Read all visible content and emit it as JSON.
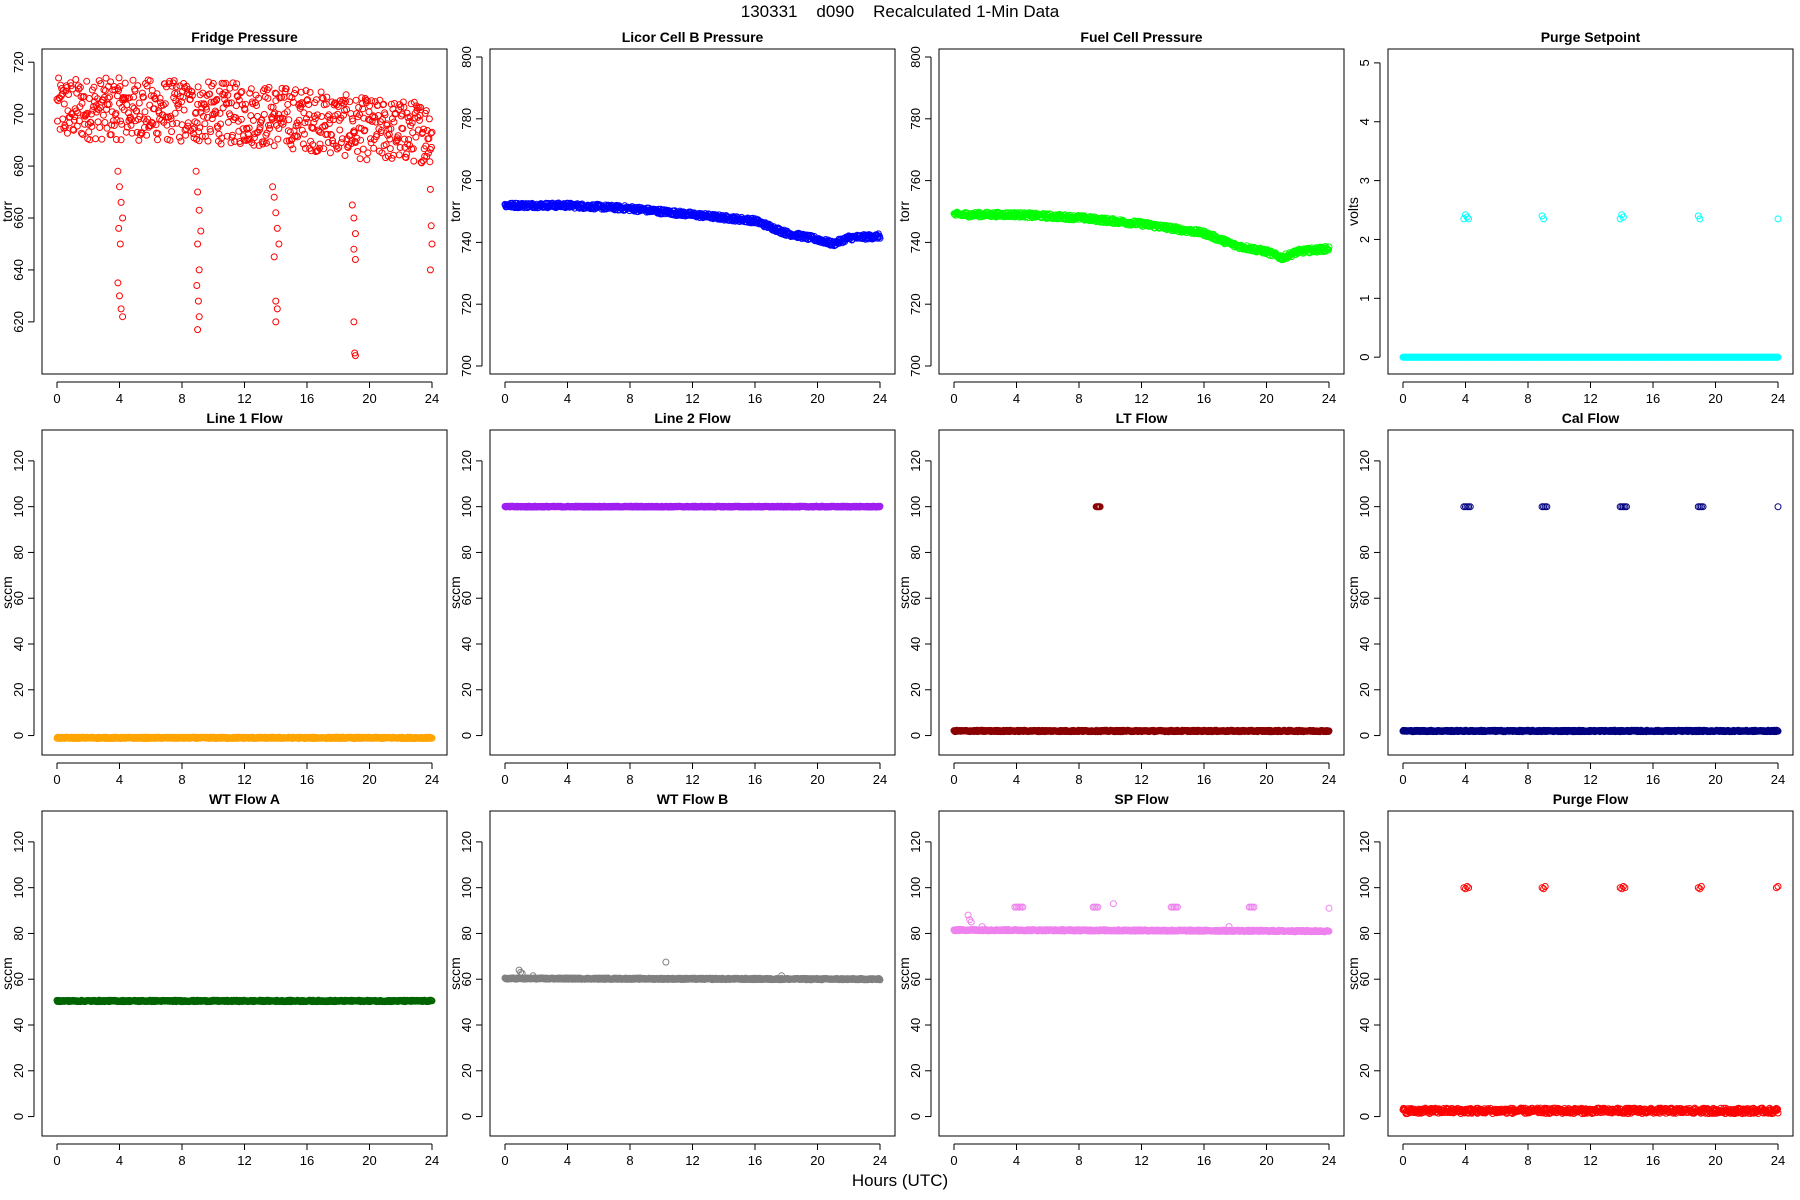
{
  "figure": {
    "title": "130331    d090    Recalculated 1-Min Data",
    "xlabel": "Hours (UTC)"
  },
  "chart_data": [
    {
      "type": "scatter",
      "title": "Fridge Pressure",
      "ylabel": "torr",
      "color": "#ff0000",
      "xlim": [
        0,
        24
      ],
      "ylim": [
        603,
        722
      ],
      "xticks": [
        0,
        4,
        8,
        12,
        16,
        20,
        24
      ],
      "yticks": [
        620,
        640,
        660,
        680,
        700,
        720
      ],
      "baseline": [
        [
          0,
          702
        ],
        [
          4,
          702
        ],
        [
          8,
          701
        ],
        [
          12,
          700
        ],
        [
          16,
          698
        ],
        [
          20,
          694
        ],
        [
          24,
          693
        ]
      ],
      "spread": 12,
      "outliers": [
        [
          3.9,
          678
        ],
        [
          4.0,
          672
        ],
        [
          4.1,
          666
        ],
        [
          4.2,
          660
        ],
        [
          3.95,
          656
        ],
        [
          4.05,
          650
        ],
        [
          3.9,
          635
        ],
        [
          4.0,
          630
        ],
        [
          4.1,
          625
        ],
        [
          4.2,
          622
        ],
        [
          8.9,
          678
        ],
        [
          9.0,
          670
        ],
        [
          9.1,
          663
        ],
        [
          9.2,
          655
        ],
        [
          9.0,
          650
        ],
        [
          9.1,
          640
        ],
        [
          8.95,
          634
        ],
        [
          9.05,
          628
        ],
        [
          9.1,
          622
        ],
        [
          9.0,
          617
        ],
        [
          13.8,
          672
        ],
        [
          13.9,
          668
        ],
        [
          14.0,
          662
        ],
        [
          14.1,
          656
        ],
        [
          14.2,
          650
        ],
        [
          13.9,
          645
        ],
        [
          14.0,
          628
        ],
        [
          14.1,
          625
        ],
        [
          14.0,
          620
        ],
        [
          18.9,
          665
        ],
        [
          19.0,
          660
        ],
        [
          19.1,
          654
        ],
        [
          19.0,
          648
        ],
        [
          19.1,
          644
        ],
        [
          19.0,
          620
        ],
        [
          19.05,
          608
        ],
        [
          19.1,
          607
        ],
        [
          23.9,
          671
        ],
        [
          23.95,
          657
        ],
        [
          24.0,
          650
        ],
        [
          23.9,
          640
        ]
      ]
    },
    {
      "type": "scatter",
      "title": "Licor Cell B Pressure",
      "ylabel": "torr",
      "color": "#0000ff",
      "xlim": [
        0,
        24
      ],
      "ylim": [
        700,
        800
      ],
      "xticks": [
        0,
        4,
        8,
        12,
        16,
        20,
        24
      ],
      "yticks": [
        700,
        720,
        740,
        760,
        780,
        800
      ],
      "baseline": [
        [
          0,
          752
        ],
        [
          4,
          752
        ],
        [
          8,
          751
        ],
        [
          12,
          749
        ],
        [
          16,
          747
        ],
        [
          18,
          743
        ],
        [
          20,
          741
        ],
        [
          21,
          739.5
        ],
        [
          22,
          741.5
        ],
        [
          24,
          742
        ]
      ],
      "spread": 0.8,
      "outliers": [
        [
          5,
          751
        ],
        [
          6,
          752
        ]
      ]
    },
    {
      "type": "scatter",
      "title": "Fuel Cell Pressure",
      "ylabel": "torr",
      "color": "#00ff00",
      "xlim": [
        0,
        24
      ],
      "ylim": [
        700,
        800
      ],
      "xticks": [
        0,
        4,
        8,
        12,
        16,
        20,
        24
      ],
      "yticks": [
        700,
        720,
        740,
        760,
        780,
        800
      ],
      "baseline": [
        [
          0,
          749
        ],
        [
          4,
          749
        ],
        [
          8,
          748
        ],
        [
          12,
          746
        ],
        [
          16,
          743
        ],
        [
          18,
          739
        ],
        [
          20,
          737
        ],
        [
          21,
          735
        ],
        [
          22,
          737
        ],
        [
          24,
          738
        ]
      ],
      "spread": 0.8,
      "outliers": [
        [
          5,
          748
        ]
      ]
    },
    {
      "type": "scatter",
      "title": "Purge Setpoint",
      "ylabel": "volts",
      "color": "#00ffff",
      "xlim": [
        0,
        24
      ],
      "ylim": [
        -0.15,
        5.1
      ],
      "xticks": [
        0,
        4,
        8,
        12,
        16,
        20,
        24
      ],
      "yticks": [
        0,
        1,
        2,
        3,
        4,
        5
      ],
      "baseline": [
        [
          0,
          0
        ],
        [
          24,
          0
        ]
      ],
      "spread": 0,
      "outliers": [
        [
          3.9,
          2.35
        ],
        [
          4.0,
          2.42
        ],
        [
          4.1,
          2.38
        ],
        [
          4.2,
          2.35
        ],
        [
          8.9,
          2.4
        ],
        [
          9.0,
          2.35
        ],
        [
          13.9,
          2.35
        ],
        [
          14.0,
          2.42
        ],
        [
          14.1,
          2.38
        ],
        [
          18.9,
          2.4
        ],
        [
          19.0,
          2.35
        ],
        [
          24.0,
          2.35
        ]
      ]
    },
    {
      "type": "scatter",
      "title": "Line 1 Flow",
      "ylabel": "sccm",
      "color": "#ffa500",
      "xlim": [
        0,
        24
      ],
      "ylim": [
        -5,
        130
      ],
      "xticks": [
        0,
        4,
        8,
        12,
        16,
        20,
        24
      ],
      "yticks": [
        0,
        20,
        40,
        60,
        80,
        100,
        120
      ],
      "baseline": [
        [
          0,
          -1
        ],
        [
          24,
          -1
        ]
      ],
      "spread": 0.3,
      "outliers": []
    },
    {
      "type": "scatter",
      "title": "Line 2 Flow",
      "ylabel": "sccm",
      "color": "#a020f0",
      "xlim": [
        0,
        24
      ],
      "ylim": [
        -5,
        130
      ],
      "xticks": [
        0,
        4,
        8,
        12,
        16,
        20,
        24
      ],
      "yticks": [
        0,
        20,
        40,
        60,
        80,
        100,
        120
      ],
      "baseline": [
        [
          0,
          100
        ],
        [
          24,
          100
        ]
      ],
      "spread": 0.2,
      "outliers": []
    },
    {
      "type": "scatter",
      "title": "LT Flow",
      "ylabel": "sccm",
      "color": "#8b0000",
      "xlim": [
        0,
        24
      ],
      "ylim": [
        -5,
        130
      ],
      "xticks": [
        0,
        4,
        8,
        12,
        16,
        20,
        24
      ],
      "yticks": [
        0,
        20,
        40,
        60,
        80,
        100,
        120
      ],
      "baseline": [
        [
          0,
          2
        ],
        [
          24,
          2
        ]
      ],
      "spread": 0.3,
      "outliers": [
        [
          9.1,
          100
        ],
        [
          9.15,
          100
        ],
        [
          9.2,
          100
        ],
        [
          9.25,
          100
        ],
        [
          9.3,
          100
        ],
        [
          9.35,
          100
        ]
      ]
    },
    {
      "type": "scatter",
      "title": "Cal Flow",
      "ylabel": "sccm",
      "color": "#000080",
      "xlim": [
        0,
        24
      ],
      "ylim": [
        -5,
        130
      ],
      "xticks": [
        0,
        4,
        8,
        12,
        16,
        20,
        24
      ],
      "yticks": [
        0,
        20,
        40,
        60,
        80,
        100,
        120
      ],
      "baseline": [
        [
          0,
          2
        ],
        [
          24,
          2
        ]
      ],
      "spread": 0.3,
      "outliers": [
        [
          3.9,
          100
        ],
        [
          4.0,
          100
        ],
        [
          4.1,
          100
        ],
        [
          4.2,
          100
        ],
        [
          4.3,
          100
        ],
        [
          8.9,
          100
        ],
        [
          9.0,
          100
        ],
        [
          9.1,
          100
        ],
        [
          9.2,
          100
        ],
        [
          13.9,
          100
        ],
        [
          14.0,
          100
        ],
        [
          14.1,
          100
        ],
        [
          14.2,
          100
        ],
        [
          14.3,
          100
        ],
        [
          18.9,
          100
        ],
        [
          19.0,
          100
        ],
        [
          19.1,
          100
        ],
        [
          19.2,
          100
        ],
        [
          24.0,
          100
        ]
      ]
    },
    {
      "type": "scatter",
      "title": "WT Flow A",
      "ylabel": "sccm",
      "color": "#006400",
      "xlim": [
        0,
        24
      ],
      "ylim": [
        -5,
        130
      ],
      "xticks": [
        0,
        4,
        8,
        12,
        16,
        20,
        24
      ],
      "yticks": [
        0,
        20,
        40,
        60,
        80,
        100,
        120
      ],
      "baseline": [
        [
          0,
          50.5
        ],
        [
          24,
          50.5
        ]
      ],
      "spread": 0.3,
      "outliers": []
    },
    {
      "type": "scatter",
      "title": "WT Flow B",
      "ylabel": "sccm",
      "color": "#808080",
      "xlim": [
        0,
        24
      ],
      "ylim": [
        -5,
        130
      ],
      "xticks": [
        0,
        4,
        8,
        12,
        16,
        20,
        24
      ],
      "yticks": [
        0,
        20,
        40,
        60,
        80,
        100,
        120
      ],
      "baseline": [
        [
          0,
          60.3
        ],
        [
          24,
          60
        ]
      ],
      "spread": 0.3,
      "outliers": [
        [
          0.9,
          64
        ],
        [
          1.0,
          63
        ],
        [
          1.1,
          62.5
        ],
        [
          1.8,
          61.5
        ],
        [
          10.3,
          67.5
        ],
        [
          17.7,
          61.5
        ]
      ]
    },
    {
      "type": "scatter",
      "title": "SP Flow",
      "ylabel": "sccm",
      "color": "#ee82ee",
      "xlim": [
        0,
        24
      ],
      "ylim": [
        -5,
        130
      ],
      "xticks": [
        0,
        4,
        8,
        12,
        16,
        20,
        24
      ],
      "yticks": [
        0,
        20,
        40,
        60,
        80,
        100,
        120
      ],
      "baseline": [
        [
          0,
          81.5
        ],
        [
          12,
          81.3
        ],
        [
          24,
          81
        ]
      ],
      "spread": 0.3,
      "outliers": [
        [
          0.9,
          88
        ],
        [
          1.0,
          86
        ],
        [
          1.1,
          85
        ],
        [
          1.8,
          83
        ],
        [
          3.9,
          91.5
        ],
        [
          4.0,
          91.5
        ],
        [
          4.1,
          91.5
        ],
        [
          4.2,
          91.5
        ],
        [
          4.3,
          91.5
        ],
        [
          4.4,
          91.5
        ],
        [
          8.9,
          91.5
        ],
        [
          9.0,
          91.5
        ],
        [
          9.1,
          91.5
        ],
        [
          9.2,
          91.5
        ],
        [
          10.2,
          93
        ],
        [
          13.9,
          91.5
        ],
        [
          14.0,
          91.5
        ],
        [
          14.1,
          91.5
        ],
        [
          14.2,
          91.5
        ],
        [
          14.3,
          91.5
        ],
        [
          17.6,
          83
        ],
        [
          18.9,
          91.5
        ],
        [
          19.0,
          91.5
        ],
        [
          19.1,
          91.5
        ],
        [
          19.2,
          91.5
        ],
        [
          24.0,
          91
        ]
      ]
    },
    {
      "type": "scatter",
      "title": "Purge Flow",
      "ylabel": "sccm",
      "color": "#ff0000",
      "xlim": [
        0,
        24
      ],
      "ylim": [
        -5,
        130
      ],
      "xticks": [
        0,
        4,
        8,
        12,
        16,
        20,
        24
      ],
      "yticks": [
        0,
        20,
        40,
        60,
        80,
        100,
        120
      ],
      "baseline": [
        [
          0,
          2.5
        ],
        [
          24,
          2.5
        ]
      ],
      "spread": 1.2,
      "outliers": [
        [
          3.9,
          100
        ],
        [
          4.0,
          99.5
        ],
        [
          4.1,
          100.5
        ],
        [
          4.2,
          100
        ],
        [
          8.9,
          100
        ],
        [
          9.0,
          99.5
        ],
        [
          9.1,
          100.5
        ],
        [
          13.9,
          100
        ],
        [
          14.0,
          99.5
        ],
        [
          14.1,
          100.5
        ],
        [
          14.2,
          100
        ],
        [
          18.9,
          100
        ],
        [
          19.0,
          99.5
        ],
        [
          19.1,
          100.5
        ],
        [
          23.9,
          100
        ],
        [
          24.0,
          100.5
        ]
      ]
    }
  ]
}
